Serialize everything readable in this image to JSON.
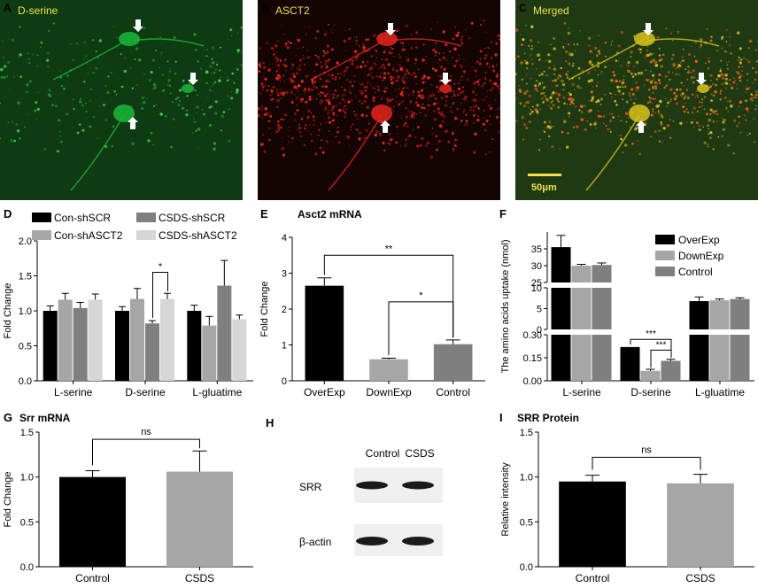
{
  "panels": {
    "A": {
      "letter": "A",
      "label": "D-serine"
    },
    "B": {
      "letter": "B",
      "label": "ASCT2"
    },
    "C": {
      "letter": "C",
      "label": "Merged",
      "scale_bar": "50μm"
    },
    "D": {
      "letter": "D"
    },
    "E": {
      "letter": "E"
    },
    "F": {
      "letter": "F"
    },
    "G": {
      "letter": "G"
    },
    "H": {
      "letter": "H",
      "lanes": [
        "Control",
        "CSDS"
      ],
      "rows": [
        "SRR",
        "β-actin"
      ]
    },
    "I": {
      "letter": "I"
    }
  },
  "colors": {
    "black": "#000000",
    "dark_gray": "#7f7f7f",
    "mid_gray": "#a6a6a6",
    "light_gray": "#d6d6d6",
    "green_channel": "#19b83a",
    "red_channel": "#e3241c",
    "merged_yellow": "#d9c21a"
  },
  "chart_data": [
    {
      "panel": "D",
      "type": "bar",
      "title": "",
      "xlabel": "",
      "ylabel": "Fold Change",
      "ylim": [
        0,
        2.0
      ],
      "yticks": [
        "0.0",
        "0.5",
        "1.0",
        "1.5",
        "2.0"
      ],
      "categories": [
        "L-serine",
        "D-serine",
        "L-gluatime"
      ],
      "legend": "top",
      "series": [
        {
          "name": "Con-shSCR",
          "color": "#000000",
          "values": [
            1.0,
            1.0,
            1.0
          ],
          "errors": [
            0.07,
            0.06,
            0.08
          ]
        },
        {
          "name": "Con-shASCT2",
          "color": "#a6a6a6",
          "values": [
            1.16,
            1.17,
            0.79
          ],
          "errors": [
            0.09,
            0.15,
            0.13
          ]
        },
        {
          "name": "CSDS-shSCR",
          "color": "#7f7f7f",
          "values": [
            1.04,
            0.82,
            1.36
          ],
          "errors": [
            0.08,
            0.04,
            0.36
          ]
        },
        {
          "name": "CSDS-shASCT2",
          "color": "#d6d6d6",
          "values": [
            1.16,
            1.17,
            0.88
          ],
          "errors": [
            0.08,
            0.08,
            0.06
          ]
        }
      ],
      "annotations": [
        {
          "text": "*",
          "category": "D-serine",
          "between": [
            "CSDS-shSCR",
            "CSDS-shASCT2"
          ]
        }
      ]
    },
    {
      "panel": "E",
      "type": "bar",
      "title": "Asct2 mRNA",
      "xlabel": "",
      "ylabel": "Fold Change",
      "ylim": [
        0,
        4
      ],
      "yticks": [
        "0",
        "1",
        "2",
        "3",
        "4"
      ],
      "categories": [
        "OverExp",
        "DownExp",
        "Control"
      ],
      "values": [
        2.65,
        0.6,
        1.02
      ],
      "errors": [
        0.22,
        0.03,
        0.12
      ],
      "colors": [
        "#000000",
        "#a6a6a6",
        "#7f7f7f"
      ],
      "annotations": [
        {
          "text": "**",
          "between": [
            "OverExp",
            "Control"
          ]
        },
        {
          "text": "*",
          "between": [
            "DownExp",
            "Control"
          ]
        }
      ]
    },
    {
      "panel": "F",
      "type": "bar",
      "axis": "broken",
      "title": "",
      "xlabel": "",
      "ylabel": "The amino acids uptake  (nmol)",
      "segments": [
        {
          "ylim": [
            0,
            0.3
          ],
          "yticks": [
            "0.00",
            "0.15",
            "0.30"
          ]
        },
        {
          "ylim": [
            0,
            10
          ],
          "yticks": [
            "0",
            "5",
            "10"
          ]
        },
        {
          "ylim": [
            25,
            40
          ],
          "yticks": [
            "25",
            "30",
            "35"
          ]
        }
      ],
      "categories": [
        "L-serine",
        "D-serine",
        "L-gluatime"
      ],
      "legend": "top-right",
      "series": [
        {
          "name": "OverExp",
          "color": "#000000",
          "values": [
            35.5,
            0.22,
            6.8
          ],
          "errors": [
            3.5,
            0.0,
            1.0
          ]
        },
        {
          "name": "DownExp",
          "color": "#a6a6a6",
          "values": [
            30.0,
            0.065,
            7.0
          ],
          "errors": [
            0.4,
            0.01,
            0.3
          ]
        },
        {
          "name": "Control",
          "color": "#7f7f7f",
          "values": [
            30.2,
            0.13,
            7.3
          ],
          "errors": [
            0.6,
            0.01,
            0.3
          ]
        }
      ],
      "annotations": [
        {
          "text": "***",
          "category": "D-serine",
          "between": [
            "OverExp",
            "Control"
          ]
        },
        {
          "text": "***",
          "category": "D-serine",
          "between": [
            "DownExp",
            "Control"
          ]
        }
      ]
    },
    {
      "panel": "G",
      "type": "bar",
      "title": "Srr mRNA",
      "xlabel": "",
      "ylabel": "Fold Change",
      "ylim": [
        0,
        1.5
      ],
      "yticks": [
        "0.0",
        "0.5",
        "1.0",
        "1.5"
      ],
      "categories": [
        "Control",
        "CSDS"
      ],
      "values": [
        1.0,
        1.06
      ],
      "errors": [
        0.07,
        0.23
      ],
      "colors": [
        "#000000",
        "#a6a6a6"
      ],
      "annotations": [
        {
          "text": "ns",
          "between": [
            "Control",
            "CSDS"
          ]
        }
      ]
    },
    {
      "panel": "I",
      "type": "bar",
      "title": "SRR Protein",
      "xlabel": "",
      "ylabel": "Relative intensity",
      "ylim": [
        0,
        1.5
      ],
      "yticks": [
        "0.0",
        "0.5",
        "1.0",
        "1.5"
      ],
      "categories": [
        "Control",
        "CSDS"
      ],
      "values": [
        0.95,
        0.93
      ],
      "errors": [
        0.07,
        0.1
      ],
      "colors": [
        "#000000",
        "#a6a6a6"
      ],
      "annotations": [
        {
          "text": "ns",
          "between": [
            "Control",
            "CSDS"
          ]
        }
      ]
    }
  ]
}
